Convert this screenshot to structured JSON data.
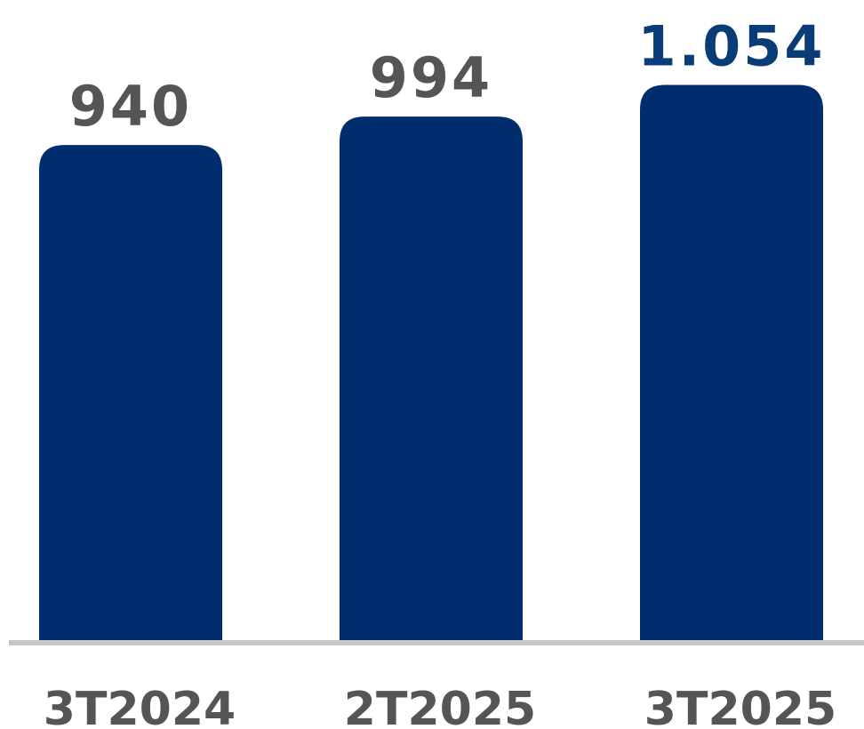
{
  "chart_data": {
    "type": "bar",
    "categories": [
      "3T2024",
      "2T2025",
      "3T2025"
    ],
    "values": [
      940,
      994,
      1054
    ],
    "value_labels": [
      "940",
      "994",
      "1.054"
    ],
    "highlight_index": 2,
    "ylim": [
      0,
      1060
    ],
    "grid": false,
    "legend": "none",
    "colors": {
      "bar": "#002D6E",
      "axis": "#C6C6C6",
      "value_label": "#555555",
      "value_label_highlight": "#0A3C78",
      "category_label": "#555555"
    }
  }
}
